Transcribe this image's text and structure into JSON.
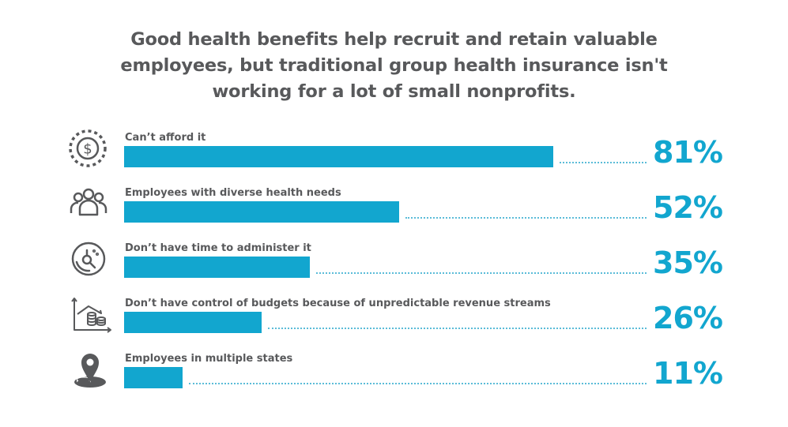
{
  "title_lines": [
    "Good health benefits help recruit and retain valuable",
    "employees, but traditional group health insurance isn't",
    "working for a lot of small nonprofits."
  ],
  "colors": {
    "bar": "#12a6cf",
    "text": "#58595b",
    "dots": "#5bbcd8"
  },
  "chart_data": {
    "type": "bar",
    "orientation": "horizontal",
    "title": "Good health benefits help recruit and retain valuable employees, but traditional group health insurance isn't working for a lot of small nonprofits.",
    "categories": [
      "Can’t afford it",
      "Employees with diverse health needs",
      "Don’t have time to administer it",
      "Don’t have control of budgets because of unpredictable revenue streams",
      "Employees in multiple states"
    ],
    "values": [
      81,
      52,
      35,
      26,
      11
    ],
    "value_labels": [
      "81%",
      "52%",
      "35%",
      "26%",
      "11%"
    ],
    "icons": [
      "dollar-coin-icon",
      "people-group-icon",
      "clock-search-icon",
      "budget-chart-coins-icon",
      "map-pin-icon"
    ],
    "xlim": [
      0,
      100
    ],
    "xlabel": "",
    "ylabel": "",
    "grid": false,
    "legend": "none"
  }
}
